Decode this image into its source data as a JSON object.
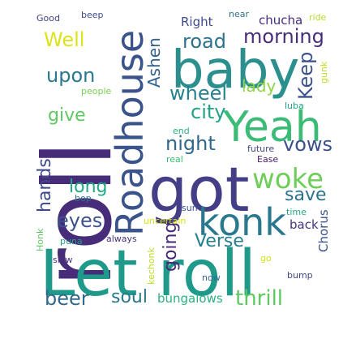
{
  "word_cloud": {
    "words": [
      {
        "text": "roll",
        "color": "#472c7a"
      },
      {
        "text": "Let roll",
        "color": "#1f9a8a"
      },
      {
        "text": "got",
        "color": "#433e85"
      },
      {
        "text": "baby",
        "color": "#2b8f8e"
      },
      {
        "text": "Yeah",
        "color": "#3bbb75"
      },
      {
        "text": "Roadhouse",
        "color": "#3a538b"
      },
      {
        "text": "konk",
        "color": "#2a788e"
      },
      {
        "text": "woke",
        "color": "#6ece58"
      },
      {
        "text": "Well",
        "color": "#dde318"
      },
      {
        "text": "road",
        "color": "#2c718e"
      },
      {
        "text": "morning",
        "color": "#472d7b"
      },
      {
        "text": "Keep",
        "color": "#3b518b"
      },
      {
        "text": "Ashen",
        "color": "#34608d"
      },
      {
        "text": "upon",
        "color": "#2a788e"
      },
      {
        "text": "wheel",
        "color": "#26828e"
      },
      {
        "text": "lady",
        "color": "#8fd744"
      },
      {
        "text": "city",
        "color": "#20a386"
      },
      {
        "text": "give",
        "color": "#5ec962"
      },
      {
        "text": "night",
        "color": "#31688e"
      },
      {
        "text": "vows",
        "color": "#3b518b"
      },
      {
        "text": "hands",
        "color": "#3e4989"
      },
      {
        "text": "long",
        "color": "#22a884"
      },
      {
        "text": "save",
        "color": "#2c728e"
      },
      {
        "text": "eyes",
        "color": "#3b528b"
      },
      {
        "text": "going",
        "color": "#472878"
      },
      {
        "text": "Verse",
        "color": "#27808e"
      },
      {
        "text": "back",
        "color": "#46327e"
      },
      {
        "text": "Chorus",
        "color": "#3b528b"
      },
      {
        "text": "beer",
        "color": "#31688e"
      },
      {
        "text": "soul",
        "color": "#2a788e"
      },
      {
        "text": "thrill",
        "color": "#5ec962"
      },
      {
        "text": "bungalows",
        "color": "#2ab07f"
      },
      {
        "text": "Right",
        "color": "#3e4989"
      },
      {
        "text": "near",
        "color": "#2c728e"
      },
      {
        "text": "chucha",
        "color": "#472d7b"
      },
      {
        "text": "ride",
        "color": "#b5de2b"
      },
      {
        "text": "Good",
        "color": "#414487"
      },
      {
        "text": "beep",
        "color": "#3e4989"
      },
      {
        "text": "people",
        "color": "#7ad151"
      },
      {
        "text": "gunk",
        "color": "#bddf26"
      },
      {
        "text": "luba",
        "color": "#20a386"
      },
      {
        "text": "end",
        "color": "#2ab07f"
      },
      {
        "text": "real",
        "color": "#3dbc74"
      },
      {
        "text": "future",
        "color": "#3e4989"
      },
      {
        "text": "Ease",
        "color": "#48186a"
      },
      {
        "text": "bop",
        "color": "#2c718e"
      },
      {
        "text": "sum",
        "color": "#3b528b"
      },
      {
        "text": "time",
        "color": "#22a884"
      },
      {
        "text": "uncertain",
        "color": "#d8e219"
      },
      {
        "text": "Honk",
        "color": "#5ec962"
      },
      {
        "text": "puna",
        "color": "#20a386"
      },
      {
        "text": "always",
        "color": "#46327e"
      },
      {
        "text": "kechonk",
        "color": "#b8de29"
      },
      {
        "text": "go",
        "color": "#d0e11c"
      },
      {
        "text": "slow",
        "color": "#46327e"
      },
      {
        "text": "now",
        "color": "#31688e"
      },
      {
        "text": "bump",
        "color": "#3e4989"
      }
    ]
  }
}
